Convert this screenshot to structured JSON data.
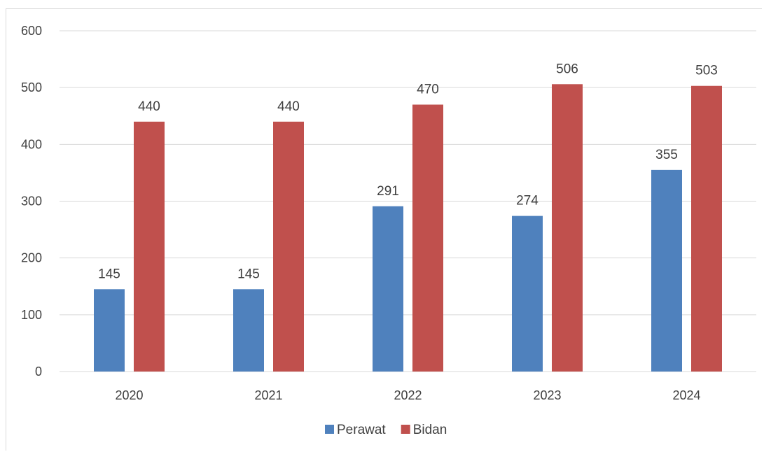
{
  "chart_data": {
    "type": "bar",
    "title": "",
    "xlabel": "",
    "ylabel": "",
    "categories": [
      "2020",
      "2021",
      "2022",
      "2023",
      "2024"
    ],
    "series": [
      {
        "name": "Perawat",
        "color": "#4f81bd",
        "values": [
          145,
          145,
          291,
          274,
          355
        ]
      },
      {
        "name": "Bidan",
        "color": "#c0504d",
        "values": [
          440,
          440,
          470,
          506,
          503
        ]
      }
    ],
    "ylim": [
      0,
      600
    ],
    "yticks": [
      "0",
      "100",
      "200",
      "300",
      "400",
      "500",
      "600"
    ],
    "grid": true,
    "legend_position": "bottom",
    "data_labels": true
  }
}
